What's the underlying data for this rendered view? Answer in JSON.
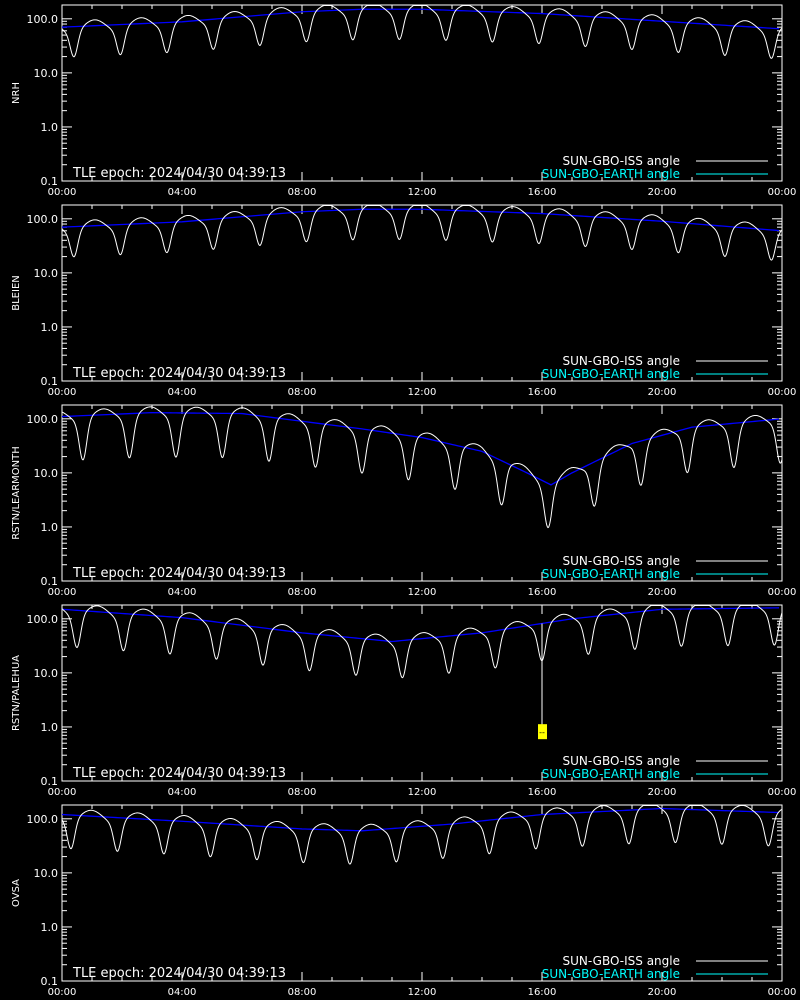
{
  "chart_data": [
    {
      "type": "line",
      "ylabel": "NRH",
      "epoch_text": "TLE epoch: 2024/04/30 04:39:13",
      "x_ticks": [
        "00:00",
        "04:00",
        "08:00",
        "12:00",
        "16:00",
        "20:00",
        "00:00"
      ],
      "y_ticks": [
        "0.1",
        "1.0",
        "10.0",
        "100.0"
      ],
      "xlim_hours": [
        0,
        24
      ],
      "ylim": [
        0.1,
        180
      ],
      "y_scale": "log",
      "legend": [
        "SUN-GBO-ISS angle",
        "SUN-GBO-EARTH angle"
      ],
      "earth": {
        "name": "SUN-GBO-EARTH angle",
        "hours": [
          0,
          4,
          8,
          10,
          12,
          16,
          20,
          24
        ],
        "values": [
          70,
          88,
          135,
          150,
          150,
          125,
          90,
          65
        ]
      },
      "iss": {
        "name": "SUN-GBO-ISS angle",
        "period_hours": 1.55,
        "phase_hours": 0.4,
        "dip_depth": 0.35,
        "min_tick": null
      }
    },
    {
      "type": "line",
      "ylabel": "BLEIEN",
      "epoch_text": "TLE epoch: 2024/04/30 04:39:13",
      "x_ticks": [
        "00:00",
        "04:00",
        "08:00",
        "12:00",
        "16:00",
        "20:00",
        "00:00"
      ],
      "y_ticks": [
        "0.1",
        "1.0",
        "10.0",
        "100.0"
      ],
      "xlim_hours": [
        0,
        24
      ],
      "ylim": [
        0.1,
        180
      ],
      "y_scale": "log",
      "legend": [
        "SUN-GBO-ISS angle",
        "SUN-GBO-EARTH angle"
      ],
      "earth": {
        "name": "SUN-GBO-EARTH angle",
        "hours": [
          0,
          4,
          8,
          10,
          12,
          16,
          20,
          24
        ],
        "values": [
          70,
          88,
          135,
          150,
          150,
          125,
          90,
          60
        ]
      },
      "iss": {
        "name": "SUN-GBO-ISS angle",
        "period_hours": 1.55,
        "phase_hours": 0.4,
        "dip_depth": 0.35,
        "min_tick": null
      }
    },
    {
      "type": "line",
      "ylabel": "RSTN/LEARMONTH",
      "epoch_text": "TLE epoch: 2024/04/30 04:39:13",
      "x_ticks": [
        "00:00",
        "04:00",
        "08:00",
        "12:00",
        "16:00",
        "20:00",
        "00:00"
      ],
      "y_ticks": [
        "0.1",
        "1.0",
        "10.0",
        "100.0"
      ],
      "xlim_hours": [
        0,
        24
      ],
      "ylim": [
        0.1,
        180
      ],
      "y_scale": "log",
      "legend": [
        "SUN-GBO-ISS angle",
        "SUN-GBO-EARTH angle"
      ],
      "earth": {
        "name": "SUN-GBO-EARTH angle",
        "hours": [
          0,
          3,
          6,
          8,
          10,
          12,
          14,
          15.5,
          16.3,
          17,
          19,
          21,
          24
        ],
        "values": [
          110,
          130,
          125,
          90,
          65,
          45,
          25,
          10,
          6,
          10,
          35,
          70,
          100
        ]
      },
      "iss": {
        "name": "SUN-GBO-ISS angle",
        "period_hours": 1.55,
        "phase_hours": 0.7,
        "dip_depth": 0.55,
        "min_tick": null
      }
    },
    {
      "type": "line",
      "ylabel": "RSTN/PALEHUA",
      "epoch_text": "TLE epoch: 2024/04/30 04:39:13",
      "x_ticks": [
        "00:00",
        "04:00",
        "08:00",
        "12:00",
        "16:00",
        "20:00",
        "00:00"
      ],
      "y_ticks": [
        "0.1",
        "1.0",
        "10.0",
        "100.0"
      ],
      "xlim_hours": [
        0,
        24
      ],
      "ylim": [
        0.1,
        180
      ],
      "y_scale": "log",
      "legend": [
        "SUN-GBO-ISS angle",
        "SUN-GBO-EARTH angle"
      ],
      "earth": {
        "name": "SUN-GBO-EARTH angle",
        "hours": [
          0,
          4,
          8,
          11,
          14,
          17,
          20,
          24
        ],
        "values": [
          150,
          105,
          55,
          38,
          55,
          100,
          150,
          160
        ]
      },
      "iss": {
        "name": "SUN-GBO-ISS angle",
        "period_hours": 1.55,
        "phase_hours": 0.5,
        "dip_depth": 0.45,
        "min_tick": {
          "hour": 16.0,
          "value": 0.8,
          "label": "--"
        }
      }
    },
    {
      "type": "line",
      "ylabel": "OVSA",
      "epoch_text": "TLE epoch: 2024/04/30 04:39:13",
      "x_ticks": [
        "00:00",
        "04:00",
        "08:00",
        "12:00",
        "16:00",
        "20:00",
        "00:00"
      ],
      "y_ticks": [
        "0.1",
        "1.0",
        "10.0",
        "100.0"
      ],
      "xlim_hours": [
        0,
        24
      ],
      "ylim": [
        0.1,
        180
      ],
      "y_scale": "log",
      "legend": [
        "SUN-GBO-ISS angle",
        "SUN-GBO-EARTH angle"
      ],
      "earth": {
        "name": "SUN-GBO-EARTH angle",
        "hours": [
          0,
          4,
          8,
          10,
          13,
          16,
          20,
          24
        ],
        "values": [
          120,
          90,
          65,
          60,
          80,
          120,
          155,
          130
        ]
      },
      "iss": {
        "name": "SUN-GBO-ISS angle",
        "period_hours": 1.55,
        "phase_hours": 0.3,
        "dip_depth": 0.4,
        "min_tick": null
      }
    }
  ],
  "colors": {
    "background": "#000000",
    "axes": "#ffffff",
    "iss_line": "#ffffff",
    "iss_line_shadow": "#808080",
    "earth_line": "#0000ff",
    "earth_line_visible": "#40e0d0",
    "legend_iss": "#ffffff",
    "legend_earth": "#00ffff",
    "marker": "#ffff00"
  }
}
